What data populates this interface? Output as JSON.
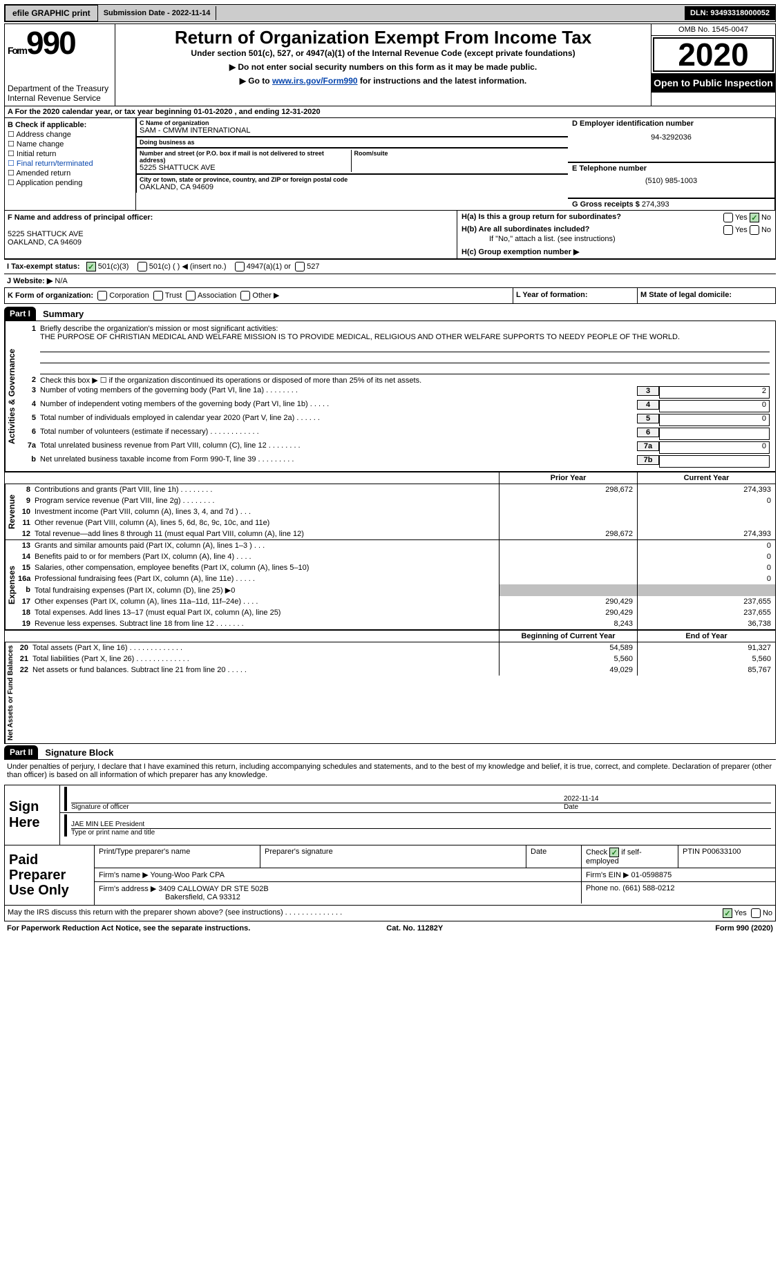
{
  "topbar": {
    "efile": "efile GRAPHIC print",
    "submission_label": "Submission Date - ",
    "submission_date": "2022-11-14",
    "dln_label": "DLN: ",
    "dln": "93493318000052"
  },
  "header": {
    "form_prefix": "Form",
    "form_num": "990",
    "dept": "Department of the Treasury\nInternal Revenue Service",
    "title": "Return of Organization Exempt From Income Tax",
    "sub": "Under section 501(c), 527, or 4947(a)(1) of the Internal Revenue Code (except private foundations)",
    "nosocial": "▶ Do not enter social security numbers on this form as it may be made public.",
    "goto_pre": "▶ Go to ",
    "goto_link": "www.irs.gov/Form990",
    "goto_post": " for instructions and the latest information.",
    "omb": "OMB No. 1545-0047",
    "year": "2020",
    "open": "Open to Public Inspection"
  },
  "a_row": {
    "text_pre": "A For the 2020 calendar year, or tax year beginning ",
    "begin": "01-01-2020",
    "mid": " , and ending ",
    "end": "12-31-2020"
  },
  "b": {
    "header": "B Check if applicable:",
    "items": [
      "Address change",
      "Name change",
      "Initial return",
      "Final return/terminated",
      "Amended return",
      "Application pending"
    ]
  },
  "c": {
    "name_lbl": "C Name of organization",
    "name": "SAM - CMWM INTERNATIONAL",
    "dba_lbl": "Doing business as",
    "dba": "",
    "addr_lbl": "Number and street (or P.O. box if mail is not delivered to street address)",
    "room_lbl": "Room/suite",
    "addr": "5225 SHATTUCK AVE",
    "city_lbl": "City or town, state or province, country, and ZIP or foreign postal code",
    "city": "OAKLAND, CA  94609"
  },
  "d": {
    "lbl": "D Employer identification number",
    "val": "94-3292036"
  },
  "e": {
    "lbl": "E Telephone number",
    "val": "(510) 985-1003"
  },
  "g": {
    "lbl": "G Gross receipts $ ",
    "val": "274,393"
  },
  "f": {
    "lbl": "F Name and address of principal officer:",
    "name": "",
    "addr1": "5225 SHATTUCK AVE",
    "addr2": "OAKLAND, CA  94609"
  },
  "h": {
    "a_lbl": "H(a)  Is this a group return for subordinates?",
    "a_yes": "Yes",
    "a_no": "No",
    "b_lbl": "H(b)  Are all subordinates included?",
    "b_yes": "Yes",
    "b_no": "No",
    "b_note": "If \"No,\" attach a list. (see instructions)",
    "c_lbl": "H(c)  Group exemption number ▶"
  },
  "i": {
    "lbl": "I   Tax-exempt status:",
    "opts": [
      "501(c)(3)",
      "501(c) (  ) ◀ (insert no.)",
      "4947(a)(1) or",
      "527"
    ]
  },
  "j": {
    "lbl": "J   Website: ▶",
    "val": "  N/A"
  },
  "k": {
    "lbl": "K Form of organization:",
    "opts": [
      "Corporation",
      "Trust",
      "Association",
      "Other ▶"
    ]
  },
  "l": {
    "lbl": "L Year of formation:",
    "val": ""
  },
  "m": {
    "lbl": "M State of legal domicile:",
    "val": ""
  },
  "part1": {
    "num": "Part I",
    "title": "Summary"
  },
  "p1": {
    "l1_label": "Briefly describe the organization's mission or most significant activities:",
    "l1_text": "THE PURPOSE OF CHRISTIAN MEDICAL AND WELFARE MISSION IS TO PROVIDE MEDICAL, RELIGIOUS AND OTHER WELFARE SUPPORTS TO NEEDY PEOPLE OF THE WORLD.",
    "l2": "Check this box ▶ ☐  if the organization discontinued its operations or disposed of more than 25% of its net assets.",
    "rows": [
      {
        "n": "3",
        "t": "Number of voting members of the governing body (Part VI, line 1a)   .    .    .    .    .    .    .    .",
        "c": "3",
        "v": "2"
      },
      {
        "n": "4",
        "t": "Number of independent voting members of the governing body (Part VI, line 1b)   .    .    .    .    .",
        "c": "4",
        "v": "0"
      },
      {
        "n": "5",
        "t": "Total number of individuals employed in calendar year 2020 (Part V, line 2a)   .    .    .    .    .    .",
        "c": "5",
        "v": "0"
      },
      {
        "n": "6",
        "t": "Total number of volunteers (estimate if necessary)   .    .    .    .    .    .    .    .    .    .    .    .",
        "c": "6",
        "v": ""
      },
      {
        "n": "7a",
        "t": "Total unrelated business revenue from Part VIII, column (C), line 12   .    .    .    .    .    .    .    .",
        "c": "7a",
        "v": "0"
      },
      {
        "n": "b",
        "t": "Net unrelated business taxable income from Form 990-T, line 39   .    .    .    .    .    .    .    .    .",
        "c": "7b",
        "v": ""
      }
    ]
  },
  "cols": {
    "prior": "Prior Year",
    "current": "Current Year",
    "boy": "Beginning of Current Year",
    "eoy": "End of Year"
  },
  "revenue": [
    {
      "n": "8",
      "t": "Contributions and grants (Part VIII, line 1h)   .    .    .    .    .    .    .    .",
      "p": "298,672",
      "c": "274,393"
    },
    {
      "n": "9",
      "t": "Program service revenue (Part VIII, line 2g)   .    .    .    .    .    .    .    .",
      "p": "",
      "c": "0"
    },
    {
      "n": "10",
      "t": "Investment income (Part VIII, column (A), lines 3, 4, and 7d )   .    .    .",
      "p": "",
      "c": ""
    },
    {
      "n": "11",
      "t": "Other revenue (Part VIII, column (A), lines 5, 6d, 8c, 9c, 10c, and 11e)",
      "p": "",
      "c": ""
    },
    {
      "n": "12",
      "t": "Total revenue—add lines 8 through 11 (must equal Part VIII, column (A), line 12)",
      "p": "298,672",
      "c": "274,393"
    }
  ],
  "expenses": [
    {
      "n": "13",
      "t": "Grants and similar amounts paid (Part IX, column (A), lines 1–3 )   .    .    .",
      "p": "",
      "c": "0"
    },
    {
      "n": "14",
      "t": "Benefits paid to or for members (Part IX, column (A), line 4)   .    .    .    .",
      "p": "",
      "c": "0"
    },
    {
      "n": "15",
      "t": "Salaries, other compensation, employee benefits (Part IX, column (A), lines 5–10)",
      "p": "",
      "c": "0"
    },
    {
      "n": "16a",
      "t": "Professional fundraising fees (Part IX, column (A), line 11e)   .    .    .    .    .",
      "p": "",
      "c": "0"
    },
    {
      "n": "b",
      "t": "Total fundraising expenses (Part IX, column (D), line 25) ▶0",
      "shade": true
    },
    {
      "n": "17",
      "t": "Other expenses (Part IX, column (A), lines 11a–11d, 11f–24e)   .    .    .    .",
      "p": "290,429",
      "c": "237,655"
    },
    {
      "n": "18",
      "t": "Total expenses. Add lines 13–17 (must equal Part IX, column (A), line 25)",
      "p": "290,429",
      "c": "237,655"
    },
    {
      "n": "19",
      "t": "Revenue less expenses. Subtract line 18 from line 12   .    .    .    .    .    .    .",
      "p": "8,243",
      "c": "36,738"
    }
  ],
  "netassets": [
    {
      "n": "20",
      "t": "Total assets (Part X, line 16)   .    .    .    .    .    .    .    .    .    .    .    .    .",
      "p": "54,589",
      "c": "91,327"
    },
    {
      "n": "21",
      "t": "Total liabilities (Part X, line 26)   .    .    .    .    .    .    .    .    .    .    .    .    .",
      "p": "5,560",
      "c": "5,560"
    },
    {
      "n": "22",
      "t": "Net assets or fund balances. Subtract line 21 from line 20   .    .    .    .    .",
      "p": "49,029",
      "c": "85,767"
    }
  ],
  "sidelabels": {
    "gov": "Activities & Governance",
    "rev": "Revenue",
    "exp": "Expenses",
    "net": "Net Assets or Fund Balances"
  },
  "part2": {
    "num": "Part II",
    "title": "Signature Block"
  },
  "penalties": "Under penalties of perjury, I declare that I have examined this return, including accompanying schedules and statements, and to the best of my knowledge and belief, it is true, correct, and complete. Declaration of preparer (other than officer) is based on all information of which preparer has any knowledge.",
  "sign": {
    "lbl": "Sign Here",
    "sig_lbl": "Signature of officer",
    "date_lbl": "Date",
    "date_val": "2022-11-14",
    "name": "JAE MIN LEE  President",
    "name_lbl": "Type or print name and title"
  },
  "paid": {
    "lbl": "Paid Preparer Use Only",
    "r1": {
      "c1": "Print/Type preparer's name",
      "c2": "Preparer's signature",
      "c3": "Date",
      "c4": "Check ☑ if self-employed",
      "c5": "PTIN P00633100"
    },
    "r2": {
      "c1": "Firm's name    ▶ Young-Woo Park CPA",
      "c2": "Firm's EIN ▶ 01-0598875"
    },
    "r3": {
      "c1": "Firm's address ▶ 3409 CALLOWAY DR STE 502B",
      "c2": "Phone no. (661) 588-0212"
    },
    "r3b": "Bakersfield, CA  93312"
  },
  "discuss": {
    "t": "May the IRS discuss this return with the preparer shown above? (see instructions)   .    .    .    .    .    .    .    .    .    .    .    .    .    .",
    "yes": "Yes",
    "no": "No"
  },
  "footer": {
    "l": "For Paperwork Reduction Act Notice, see the separate instructions.",
    "c": "Cat. No. 11282Y",
    "r": "Form 990 (2020)"
  },
  "colors": {
    "black": "#000000",
    "link": "#0645ad",
    "gray": "#cccccc",
    "green": "#1a7a1a",
    "shade": "#c0c0c0"
  }
}
